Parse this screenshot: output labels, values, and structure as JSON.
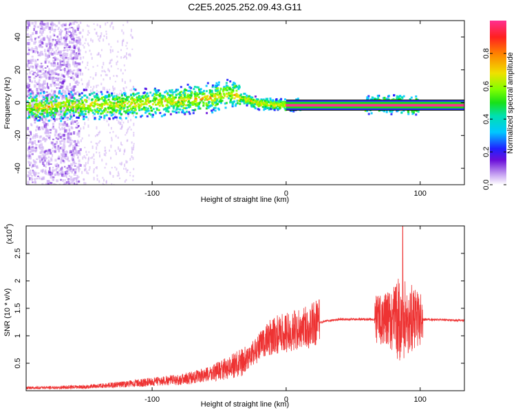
{
  "title": "C2E5.2025.252.09.43.G11",
  "chart_data": [
    {
      "type": "heatmap",
      "xlabel": "Height of straight line (km)",
      "ylabel": "Frequency (Hz)",
      "xlim": [
        -194,
        133
      ],
      "ylim": [
        -50,
        50
      ],
      "xticks": [
        -100,
        0,
        100
      ],
      "yticks": [
        -40,
        -20,
        0,
        20,
        40
      ],
      "colorbar": {
        "label": "Normalized spectral amplitude",
        "range": [
          0,
          1
        ],
        "ticks": [
          0.0,
          0.2,
          0.4,
          0.6,
          0.8
        ]
      },
      "ridge": [
        {
          "x": -190,
          "y": -2
        },
        {
          "x": -150,
          "y": -1
        },
        {
          "x": -110,
          "y": 0
        },
        {
          "x": -80,
          "y": 2
        },
        {
          "x": -60,
          "y": 3
        },
        {
          "x": -40,
          "y": 6
        },
        {
          "x": -33,
          "y": 3
        },
        {
          "x": -20,
          "y": 0
        },
        {
          "x": 0,
          "y": -1
        },
        {
          "x": 60,
          "y": -1
        },
        {
          "x": 80,
          "y": 0
        },
        {
          "x": 100,
          "y": -2
        },
        {
          "x": 133,
          "y": -2
        }
      ]
    },
    {
      "type": "line",
      "xlabel": "Height of straight line (km)",
      "ylabel": "SNR (10 * v/v)",
      "yscale_label": "(x10",
      "yscale_exp": "4",
      "xlim": [
        -194,
        133
      ],
      "ylim": [
        0,
        3
      ],
      "xticks": [
        -100,
        0,
        100
      ],
      "yticks": [
        0.5,
        1.0,
        1.5,
        2.0,
        2.5
      ],
      "series": [
        {
          "color": "#ee3333",
          "envelope": [
            {
              "x": -194,
              "y": 0.05
            },
            {
              "x": -150,
              "y": 0.07
            },
            {
              "x": -120,
              "y": 0.12
            },
            {
              "x": -100,
              "y": 0.16
            },
            {
              "x": -80,
              "y": 0.2
            },
            {
              "x": -60,
              "y": 0.28
            },
            {
              "x": -45,
              "y": 0.4
            },
            {
              "x": -30,
              "y": 0.55
            },
            {
              "x": -20,
              "y": 0.8
            },
            {
              "x": -10,
              "y": 1.0
            },
            {
              "x": 0,
              "y": 1.05
            },
            {
              "x": 10,
              "y": 1.12
            },
            {
              "x": 20,
              "y": 1.2
            },
            {
              "x": 30,
              "y": 1.27
            },
            {
              "x": 40,
              "y": 1.3
            },
            {
              "x": 60,
              "y": 1.3
            },
            {
              "x": 70,
              "y": 1.3
            },
            {
              "x": 90,
              "y": 1.3
            },
            {
              "x": 100,
              "y": 1.3
            },
            {
              "x": 133,
              "y": 1.28
            }
          ]
        }
      ]
    }
  ]
}
